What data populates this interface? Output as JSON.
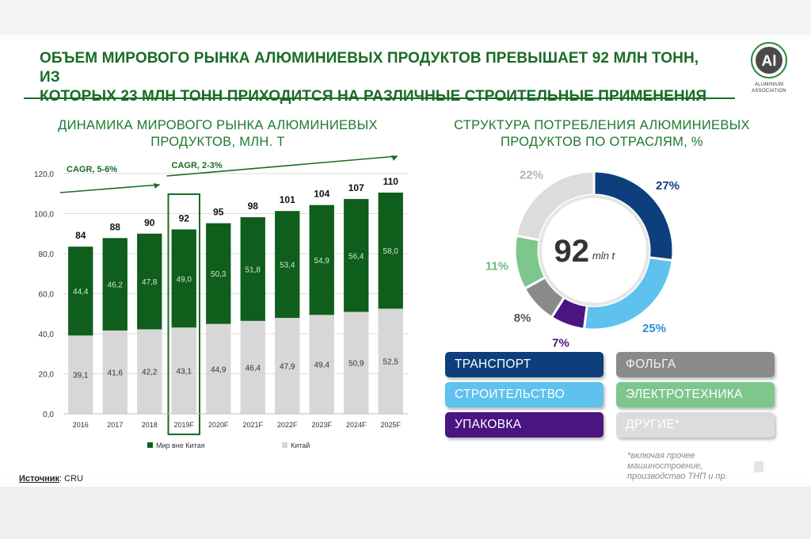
{
  "headline": {
    "line1": "ОБЪЕМ МИРОВОГО РЫНКА АЛЮМИНИЕВЫХ ПРОДУКТОВ ПРЕВЫШАЕТ 92 МЛН ТОНН, ИЗ",
    "line2": "КОТОРЫХ 23 МЛН ТОНН ПРИХОДИТСЯ НА РАЗЛИЧНЫЕ СТРОИТЕЛЬНЫЕ ПРИМЕНЕНИЯ"
  },
  "logo": {
    "monogram": "Al",
    "line1": "ALUMINIUM",
    "line2": "ASSOCIATION",
    "colors": {
      "ring": "#2a8a3a",
      "fill": "#4a4a4a"
    }
  },
  "source": {
    "label": "Источник",
    "value": ": CRU"
  },
  "footnote": "*включая прочее машиностроение, производство ТНП и пр.",
  "chart_data": [
    {
      "type": "bar",
      "stacked": true,
      "title_line1": "ДИНАМИКА МИРОВОГО РЫНКА АЛЮМИНИЕВЫХ",
      "title_line2": "ПРОДУКТОВ, МЛН. Т",
      "categories": [
        "2016",
        "2017",
        "2018",
        "2019F",
        "2020F",
        "2021F",
        "2022F",
        "2023F",
        "2024F",
        "2025F"
      ],
      "series": [
        {
          "name": "Китай",
          "values": [
            39.1,
            41.6,
            42.2,
            43.1,
            44.9,
            46.4,
            47.9,
            49.4,
            50.9,
            52.5
          ],
          "labels": [
            "39,1",
            "41,6",
            "42,2",
            "43,1",
            "44,9",
            "46,4",
            "47,9",
            "49,4",
            "50,9",
            "52,5"
          ],
          "color": "#d7d7d7"
        },
        {
          "name": "Мир вне Китая",
          "values": [
            44.4,
            46.2,
            47.8,
            49.0,
            50.3,
            51.8,
            53.4,
            54.9,
            56.4,
            58.0
          ],
          "labels": [
            "44,4",
            "46,2",
            "47,8",
            "49,0",
            "50,3",
            "51,8",
            "53,4",
            "54,9",
            "56,4",
            "58,0"
          ],
          "color": "#0f5e1c"
        }
      ],
      "totals": [
        "84",
        "88",
        "90",
        "92",
        "95",
        "98",
        "101",
        "104",
        "107",
        "110"
      ],
      "ylim": [
        0,
        120
      ],
      "yticks": [
        0,
        20,
        40,
        60,
        80,
        100,
        120
      ],
      "ytick_labels": [
        "0,0",
        "20,0",
        "40,0",
        "60,0",
        "80,0",
        "100,0",
        "120,0"
      ],
      "grid": true,
      "highlight_category": "2019F",
      "annotations": [
        {
          "text": "CAGR, 5-6%",
          "from_category": "2016",
          "to_category": "2018"
        },
        {
          "text": "CAGR, 2-3%",
          "from_category": "2019F",
          "to_category": "2025F"
        }
      ],
      "legend_order": [
        "Мир вне Китая",
        "Китай"
      ],
      "legend_position": "bottom"
    },
    {
      "type": "pie",
      "donut": true,
      "title_line1": "СТРУКТУРА ПОТРЕБЛЕНИЯ АЛЮМИНИЕВЫХ",
      "title_line2": "ПРОДУКТОВ ПО ОТРАСЛЯМ, %",
      "center_value": "92",
      "center_unit": "mln t",
      "slices": [
        {
          "name": "ТРАНСПОРТ",
          "value": 27,
          "label": "27%",
          "color": "#0d3f7c"
        },
        {
          "name": "СТРОИТЕЛЬСТВО",
          "value": 25,
          "label": "25%",
          "color": "#5ec1ee"
        },
        {
          "name": "УПАКОВКА",
          "value": 7,
          "label": "7%",
          "color": "#4a1580"
        },
        {
          "name": "ФОЛЬГА",
          "value": 8,
          "label": "8%",
          "color": "#8a8a8a"
        },
        {
          "name": "ЭЛЕКТРОТЕХНИКА",
          "value": 11,
          "label": "11%",
          "color": "#7dc78d"
        },
        {
          "name": "ДРУГИЕ*",
          "value": 22,
          "label": "22%",
          "color": "#dcdcdc"
        }
      ],
      "label_colors": {
        "ТРАНСПОРТ": "#0d3f7c",
        "СТРОИТЕЛЬСТВО": "#2a8fd0",
        "УПАКОВКА": "#4a1580",
        "ФОЛЬГА": "#555555",
        "ЭЛЕКТРОТЕХНИКА": "#6dbb7d",
        "ДРУГИЕ*": "#b5b5b5"
      },
      "legend_text_colors": {
        "ФОЛЬГА": "#f2f2f2",
        "ДРУГИЕ*": "#ffffff"
      }
    }
  ]
}
